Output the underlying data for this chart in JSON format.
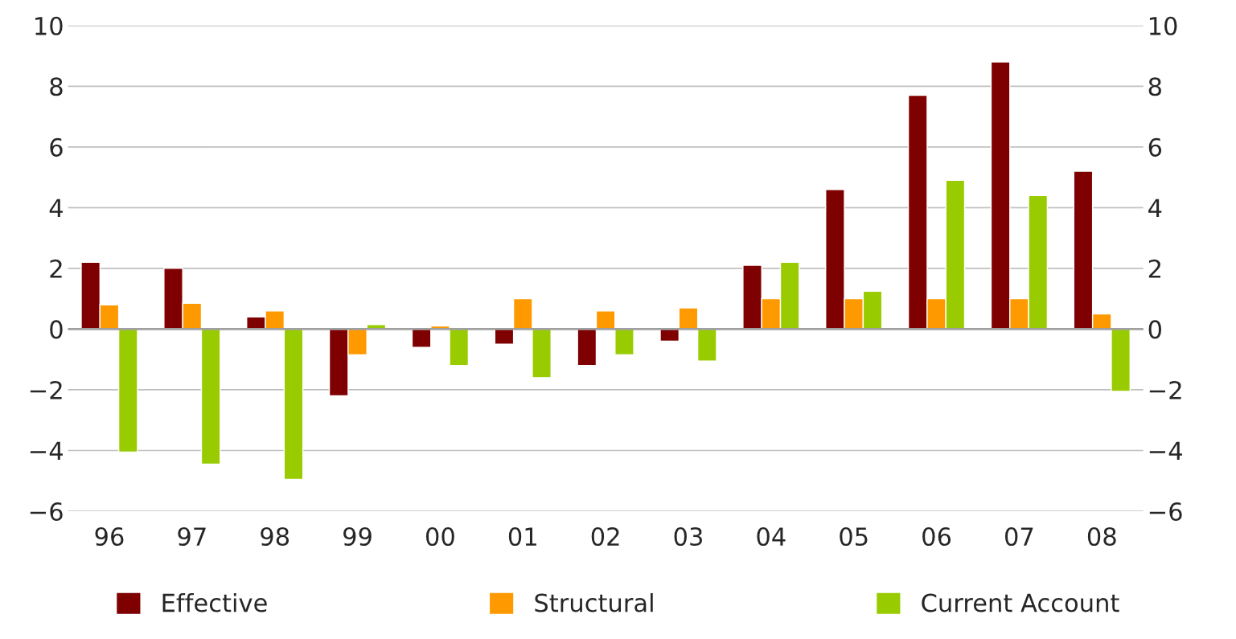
{
  "chart_data": {
    "type": "bar",
    "categories": [
      "96",
      "97",
      "98",
      "99",
      "00",
      "01",
      "02",
      "03",
      "04",
      "05",
      "06",
      "07",
      "08"
    ],
    "series": [
      {
        "name": "Effective",
        "color": "#7f0000",
        "values": [
          2.2,
          2.0,
          0.4,
          -2.2,
          -0.6,
          -0.5,
          -1.2,
          -0.4,
          2.1,
          4.6,
          7.7,
          8.8,
          5.2
        ]
      },
      {
        "name": "Structural",
        "color": "#ff9900",
        "values": [
          0.8,
          0.85,
          0.6,
          -0.85,
          0.1,
          1.0,
          0.6,
          0.7,
          1.0,
          1.0,
          1.0,
          1.0,
          0.5
        ]
      },
      {
        "name": "Current Account",
        "color": "#99cc00",
        "values": [
          -4.05,
          -4.45,
          -4.95,
          0.15,
          -1.2,
          -1.6,
          -0.85,
          -1.05,
          2.2,
          1.25,
          4.9,
          4.4,
          -2.05
        ]
      }
    ],
    "ylim": [
      -6,
      10
    ],
    "yticks": [
      -6,
      -4,
      -2,
      0,
      2,
      4,
      6,
      8,
      10
    ],
    "y2lim": [
      -6,
      10
    ],
    "y2ticks": [
      -6,
      -4,
      -2,
      0,
      2,
      4,
      6,
      8,
      10
    ],
    "grid": "y",
    "legend": "bottom"
  }
}
